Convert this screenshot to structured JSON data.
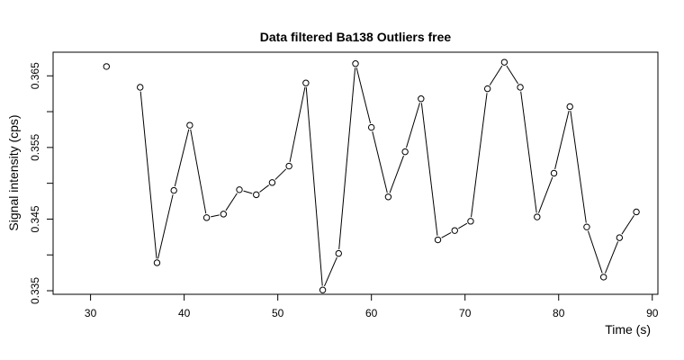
{
  "chart_data": {
    "type": "line",
    "title": "Data filtered Ba138 Outliers free",
    "xlabel": "Time (s)",
    "ylabel": "Signal intensity (cps)",
    "xlim": [
      26,
      90.6
    ],
    "ylim": [
      0.3345,
      0.3683
    ],
    "x_ticks": [
      30,
      40,
      50,
      60,
      70,
      80,
      90
    ],
    "x_tick_labels": [
      "30",
      "40",
      "50",
      "60",
      "70",
      "80",
      "90"
    ],
    "y_ticks": [
      0.335,
      0.34,
      0.345,
      0.35,
      0.355,
      0.36,
      0.365
    ],
    "y_tick_labels": [
      "0.335",
      "",
      "0.345",
      "",
      "0.355",
      "",
      "0.365"
    ],
    "grid": false,
    "segments": [
      [
        {
          "x": 31.7,
          "y": 0.3663
        }
      ],
      [
        {
          "x": 35.3,
          "y": 0.3634
        },
        {
          "x": 37.1,
          "y": 0.3389
        },
        {
          "x": 38.9,
          "y": 0.349
        },
        {
          "x": 40.6,
          "y": 0.3581
        },
        {
          "x": 42.4,
          "y": 0.3452
        },
        {
          "x": 44.2,
          "y": 0.3457
        },
        {
          "x": 45.9,
          "y": 0.3491
        },
        {
          "x": 47.7,
          "y": 0.3484
        },
        {
          "x": 49.4,
          "y": 0.3501
        },
        {
          "x": 51.2,
          "y": 0.3524
        },
        {
          "x": 53.0,
          "y": 0.364
        },
        {
          "x": 54.8,
          "y": 0.3351
        },
        {
          "x": 56.5,
          "y": 0.3402
        },
        {
          "x": 58.3,
          "y": 0.3667
        },
        {
          "x": 60.0,
          "y": 0.3578
        },
        {
          "x": 61.8,
          "y": 0.3481
        },
        {
          "x": 63.6,
          "y": 0.3544
        },
        {
          "x": 65.3,
          "y": 0.3618
        },
        {
          "x": 67.1,
          "y": 0.3421
        },
        {
          "x": 68.9,
          "y": 0.3434
        },
        {
          "x": 70.6,
          "y": 0.3447
        },
        {
          "x": 72.4,
          "y": 0.3632
        },
        {
          "x": 74.2,
          "y": 0.3669
        },
        {
          "x": 75.9,
          "y": 0.3634
        },
        {
          "x": 77.7,
          "y": 0.3453
        },
        {
          "x": 79.5,
          "y": 0.3514
        },
        {
          "x": 81.2,
          "y": 0.3607
        },
        {
          "x": 83.0,
          "y": 0.3439
        },
        {
          "x": 84.8,
          "y": 0.3369
        },
        {
          "x": 86.5,
          "y": 0.3424
        },
        {
          "x": 88.3,
          "y": 0.346
        }
      ]
    ]
  }
}
